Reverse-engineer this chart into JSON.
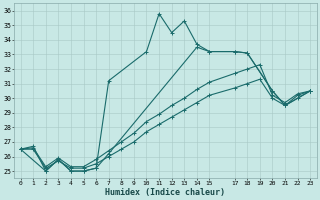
{
  "bg_color": "#c8e8e5",
  "grid_color": "#a8c8c5",
  "line_color": "#1a6b6b",
  "x_label": "Humidex (Indice chaleur)",
  "ylim": [
    24.5,
    36.5
  ],
  "xlim": [
    -0.5,
    23.5
  ],
  "yticks": [
    25,
    26,
    27,
    28,
    29,
    30,
    31,
    32,
    33,
    34,
    35,
    36
  ],
  "xticks": [
    0,
    1,
    2,
    3,
    4,
    5,
    6,
    7,
    8,
    9,
    10,
    11,
    12,
    13,
    14,
    15,
    17,
    18,
    19,
    20,
    21,
    22,
    23
  ],
  "xtick_labels": [
    "0",
    "1",
    "2",
    "3",
    "4",
    "5",
    "6",
    "7",
    "8",
    "9",
    "10",
    "11",
    "12",
    "13",
    "14",
    "15",
    "17",
    "18",
    "19",
    "20",
    "21",
    "22",
    "23"
  ],
  "line_top_x": [
    0,
    1,
    2,
    3,
    4,
    5,
    6,
    7,
    10,
    11,
    12,
    13,
    14,
    15,
    17,
    18,
    20,
    21,
    22,
    23
  ],
  "line_top_y": [
    26.5,
    26.7,
    25.0,
    25.8,
    25.0,
    25.0,
    25.2,
    31.2,
    33.2,
    35.8,
    34.5,
    35.3,
    33.7,
    33.2,
    33.2,
    33.1,
    30.5,
    29.5,
    30.2,
    30.5
  ],
  "line_mid_x": [
    0,
    2,
    3,
    4,
    5,
    6,
    7,
    14,
    15,
    17,
    18,
    20,
    21,
    23
  ],
  "line_mid_y": [
    26.5,
    25.0,
    25.8,
    25.0,
    25.0,
    25.2,
    26.2,
    33.5,
    33.2,
    33.2,
    33.1,
    30.5,
    29.5,
    30.5
  ],
  "line_diag1_x": [
    0,
    1,
    2,
    3,
    4,
    5,
    6,
    7,
    8,
    9,
    10,
    11,
    12,
    13,
    14,
    15,
    17,
    18,
    19,
    20,
    21,
    22,
    23
  ],
  "line_diag1_y": [
    26.5,
    26.5,
    25.2,
    25.7,
    25.2,
    25.2,
    25.5,
    26.0,
    26.5,
    27.0,
    27.7,
    28.2,
    28.7,
    29.2,
    29.7,
    30.2,
    30.7,
    31.0,
    31.3,
    30.0,
    29.5,
    30.0,
    30.5
  ],
  "line_diag2_x": [
    0,
    1,
    2,
    3,
    4,
    5,
    6,
    7,
    8,
    9,
    10,
    11,
    12,
    13,
    14,
    15,
    17,
    18,
    19,
    20,
    21,
    22,
    23
  ],
  "line_diag2_y": [
    26.5,
    26.6,
    25.3,
    25.9,
    25.3,
    25.3,
    25.8,
    26.4,
    27.0,
    27.6,
    28.4,
    28.9,
    29.5,
    30.0,
    30.6,
    31.1,
    31.7,
    32.0,
    32.3,
    30.2,
    29.7,
    30.3,
    30.5
  ]
}
